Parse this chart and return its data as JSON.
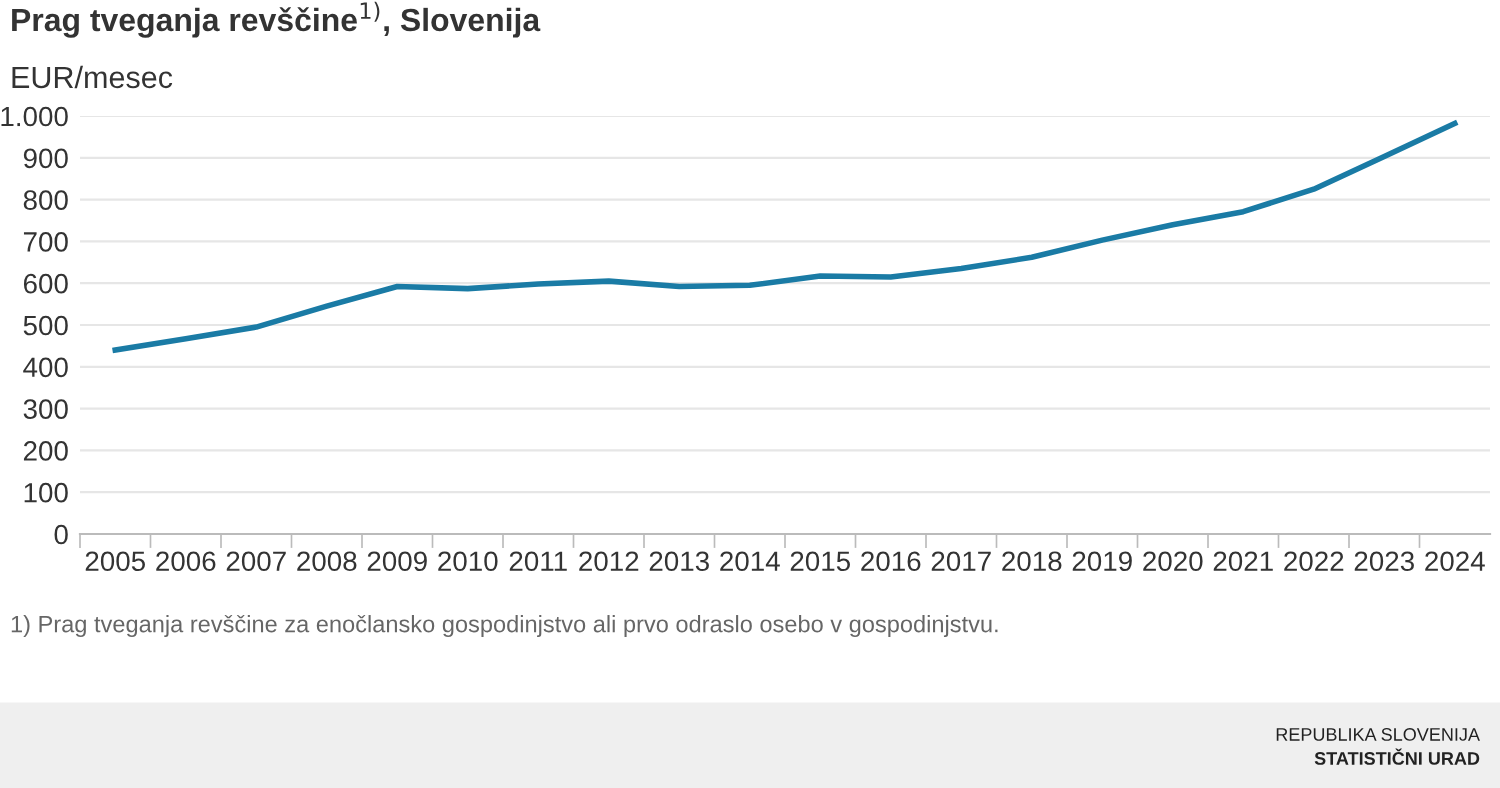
{
  "chart_data": {
    "type": "line",
    "title": "Prag tveganja revščine$^{1)}$, Slovenija",
    "ylabel": "EUR/mesec",
    "categories": [
      "2005",
      "2006",
      "2007",
      "2008",
      "2009",
      "2010",
      "2011",
      "2012",
      "2013",
      "2014",
      "2015",
      "2016",
      "2017",
      "2018",
      "2019",
      "2020",
      "2021",
      "2022",
      "2023",
      "2024"
    ],
    "series": [
      {
        "color": "#1a7ba5",
        "values": [
          440,
          467,
          495,
          545,
          592,
          587,
          598,
          605,
          592,
          595,
          617,
          615,
          635,
          662,
          703,
          740,
          771,
          825,
          903,
          982
        ]
      }
    ],
    "ylim": [
      0,
      1000
    ],
    "yticks": [
      0,
      100,
      200,
      300,
      400,
      500,
      600,
      700,
      800,
      900,
      {
        "value": 1000,
        "label": "1.000"
      }
    ],
    "grid": "y",
    "marker": "none",
    "line_style": "solid",
    "annotations": [
      "1) Prag tveganja revščine za enočlansko gospodinjstvo ali prvo odraslo osebo v gospodinjstvu.",
      "REPUBLIKA SLOVENIJA",
      "STATISTIČNI URAD"
    ]
  }
}
